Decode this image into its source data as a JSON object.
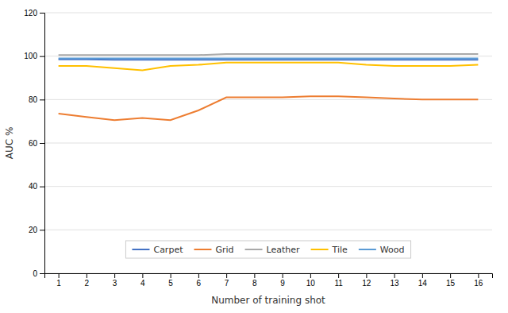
{
  "chart_data": {
    "type": "line",
    "x": [
      1,
      2,
      3,
      4,
      5,
      6,
      7,
      8,
      9,
      10,
      11,
      12,
      13,
      14,
      15,
      16
    ],
    "series": [
      {
        "name": "Carpet",
        "color": "#4472C4",
        "values": [
          98.5,
          98.5,
          98.3,
          98.3,
          98.3,
          98.3,
          98.3,
          98.3,
          98.3,
          98.3,
          98.3,
          98.3,
          98.3,
          98.3,
          98.3,
          98.3
        ]
      },
      {
        "name": "Grid",
        "color": "#ED7D31",
        "values": [
          73.5,
          72.0,
          70.5,
          71.5,
          70.5,
          75.0,
          81.0,
          81.0,
          81.0,
          81.5,
          81.5,
          81.0,
          80.5,
          80.0,
          80.0,
          80.0
        ]
      },
      {
        "name": "Leather",
        "color": "#A9A9A9",
        "values": [
          100.5,
          100.5,
          100.5,
          100.5,
          100.5,
          100.5,
          101.0,
          101.0,
          101.0,
          101.0,
          101.0,
          101.0,
          101.0,
          101.0,
          101.0,
          101.0
        ]
      },
      {
        "name": "Tile",
        "color": "#FFC000",
        "values": [
          95.5,
          95.5,
          94.5,
          93.5,
          95.5,
          96.0,
          97.0,
          97.0,
          97.0,
          97.0,
          97.0,
          96.0,
          95.5,
          95.5,
          95.5,
          96.0
        ]
      },
      {
        "name": "Wood",
        "color": "#5B9BD5",
        "values": [
          99.0,
          99.0,
          99.0,
          99.0,
          99.0,
          99.0,
          99.0,
          99.0,
          99.0,
          99.0,
          99.0,
          99.0,
          99.0,
          99.0,
          99.0,
          99.0
        ]
      }
    ],
    "xlabel": "Number of training shot",
    "ylabel": "AUC %",
    "xlim": [
      0.5,
      16.5
    ],
    "xticks": [
      1,
      2,
      3,
      4,
      5,
      6,
      7,
      8,
      9,
      10,
      11,
      12,
      13,
      14,
      15,
      16
    ],
    "ylim": [
      0,
      120
    ],
    "yticks": [
      0,
      20,
      40,
      60,
      80,
      100,
      120
    ],
    "grid": true,
    "legend": "bottom"
  }
}
